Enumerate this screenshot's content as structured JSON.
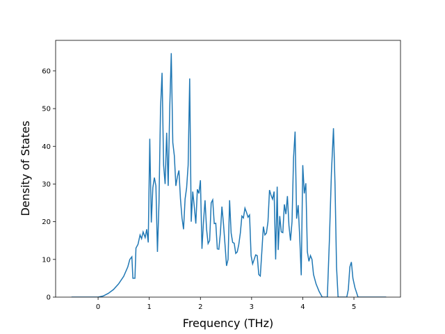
{
  "chart_data": {
    "type": "line",
    "x_label": "Frequency (THz)",
    "y_label": "Density of States",
    "xlim": [
      -0.83,
      5.91
    ],
    "ylim": [
      0,
      68.1
    ],
    "xticks": [
      0,
      1,
      2,
      3,
      4,
      5
    ],
    "yticks": [
      0,
      10,
      20,
      30,
      40,
      50,
      60
    ],
    "x": [
      -0.52,
      0,
      0.1,
      0.2,
      0.3,
      0.4,
      0.5,
      0.58,
      0.62,
      0.66,
      0.68,
      0.72,
      0.74,
      0.78,
      0.82,
      0.85,
      0.88,
      0.92,
      0.95,
      0.98,
      1.01,
      1.04,
      1.07,
      1.1,
      1.13,
      1.16,
      1.19,
      1.22,
      1.25,
      1.28,
      1.31,
      1.34,
      1.37,
      1.4,
      1.43,
      1.46,
      1.49,
      1.52,
      1.55,
      1.58,
      1.61,
      1.64,
      1.67,
      1.7,
      1.73,
      1.76,
      1.79,
      1.82,
      1.85,
      1.88,
      1.91,
      1.94,
      1.97,
      2.0,
      2.03,
      2.06,
      2.09,
      2.12,
      2.15,
      2.18,
      2.21,
      2.24,
      2.27,
      2.3,
      2.33,
      2.36,
      2.39,
      2.42,
      2.45,
      2.48,
      2.51,
      2.54,
      2.57,
      2.6,
      2.63,
      2.66,
      2.69,
      2.72,
      2.75,
      2.78,
      2.81,
      2.84,
      2.87,
      2.9,
      2.93,
      2.96,
      2.99,
      3.02,
      3.05,
      3.08,
      3.11,
      3.14,
      3.17,
      3.2,
      3.23,
      3.26,
      3.29,
      3.32,
      3.35,
      3.38,
      3.41,
      3.44,
      3.47,
      3.5,
      3.52,
      3.55,
      3.58,
      3.61,
      3.64,
      3.67,
      3.7,
      3.73,
      3.76,
      3.79,
      3.82,
      3.85,
      3.88,
      3.91,
      3.94,
      3.97,
      4.0,
      4.03,
      4.06,
      4.09,
      4.12,
      4.15,
      4.18,
      4.21,
      4.26,
      4.32,
      4.38,
      4.48,
      4.52,
      4.56,
      4.6,
      4.63,
      4.66,
      4.69,
      4.86,
      4.89,
      4.92,
      4.95,
      4.98,
      5.02,
      5.08,
      5.63
    ],
    "series": [
      {
        "color": "#1f77b4",
        "values": [
          0,
          0,
          0.3,
          1,
          2,
          3.5,
          5.5,
          8,
          10,
          10.7,
          5,
          5,
          13,
          14,
          16.5,
          15.5,
          17.3,
          15.8,
          18,
          14.5,
          42,
          19.8,
          29,
          31.7,
          29.5,
          12,
          25,
          50,
          59.5,
          35,
          30,
          43.6,
          29.5,
          50,
          64.7,
          41,
          37.5,
          29.5,
          32,
          33.6,
          26,
          21,
          18,
          26,
          29,
          35,
          58,
          20,
          28,
          24,
          19.5,
          28.6,
          27.5,
          31,
          12.8,
          20,
          25.7,
          18,
          14.2,
          15,
          25,
          25.8,
          19.5,
          19.6,
          12.8,
          12.7,
          17,
          24,
          19.5,
          14,
          8.3,
          10,
          25.7,
          17,
          14.5,
          14.3,
          11.6,
          12,
          14,
          17,
          21.5,
          21,
          23.6,
          22.5,
          21.2,
          21.8,
          11,
          8.8,
          10,
          11.2,
          11,
          6,
          5.6,
          12,
          18.7,
          16.5,
          17,
          20,
          28.4,
          27,
          26,
          28,
          10,
          29.3,
          12.5,
          21.5,
          17.3,
          17.1,
          24.6,
          22,
          26.8,
          19,
          15,
          20,
          37,
          43.9,
          20.8,
          24.4,
          16,
          5.8,
          35,
          27.5,
          30.2,
          12,
          9.5,
          11,
          10,
          6,
          3.5,
          1.5,
          0,
          0,
          15,
          33,
          44.8,
          30,
          8,
          0,
          0,
          2,
          8,
          9.3,
          5,
          2.5,
          0,
          0
        ]
      }
    ]
  }
}
